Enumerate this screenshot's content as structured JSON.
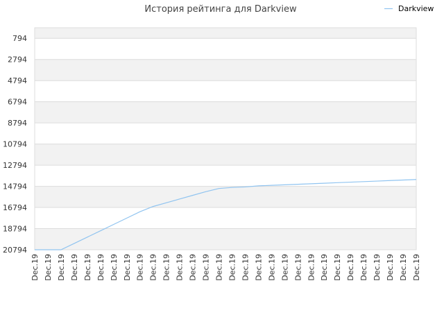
{
  "colors": {
    "series_line": "#90c4f0",
    "band_shaded": "#f2f2f2",
    "band_plain": "#ffffff",
    "grid": "#dcdcdc",
    "border": "#dddddd"
  },
  "chart_data": {
    "type": "line",
    "title": "История рейтинга для Darkview",
    "xlabel": "",
    "ylabel": "",
    "grid": true,
    "legend": "top-right",
    "y_inverted": true,
    "ylim": [
      20794,
      -206
    ],
    "yticks": [
      794,
      2794,
      4794,
      6794,
      8794,
      10794,
      12794,
      14794,
      16794,
      18794,
      20794
    ],
    "x": [
      "Dec.19",
      "Dec.19",
      "Dec.19",
      "Dec.19",
      "Dec.19",
      "Dec.19",
      "Dec.19",
      "Dec.19",
      "Dec.19",
      "Dec.19",
      "Dec.19",
      "Dec.19",
      "Dec.19",
      "Dec.19",
      "Dec.19",
      "Dec.19",
      "Dec.19",
      "Dec.19",
      "Dec.19",
      "Dec.19",
      "Dec.19",
      "Dec.19",
      "Dec.19",
      "Dec.19",
      "Dec.19",
      "Dec.19",
      "Dec.19",
      "Dec.19",
      "Dec.19",
      "Dec.19"
    ],
    "series": [
      {
        "name": "Darkview",
        "values": [
          20794,
          20794,
          20794,
          20200,
          19600,
          19000,
          18400,
          17800,
          17200,
          16700,
          16350,
          16000,
          15650,
          15300,
          15000,
          14900,
          14850,
          14750,
          14700,
          14650,
          14600,
          14550,
          14500,
          14450,
          14400,
          14350,
          14300,
          14250,
          14200,
          14150
        ]
      }
    ]
  }
}
